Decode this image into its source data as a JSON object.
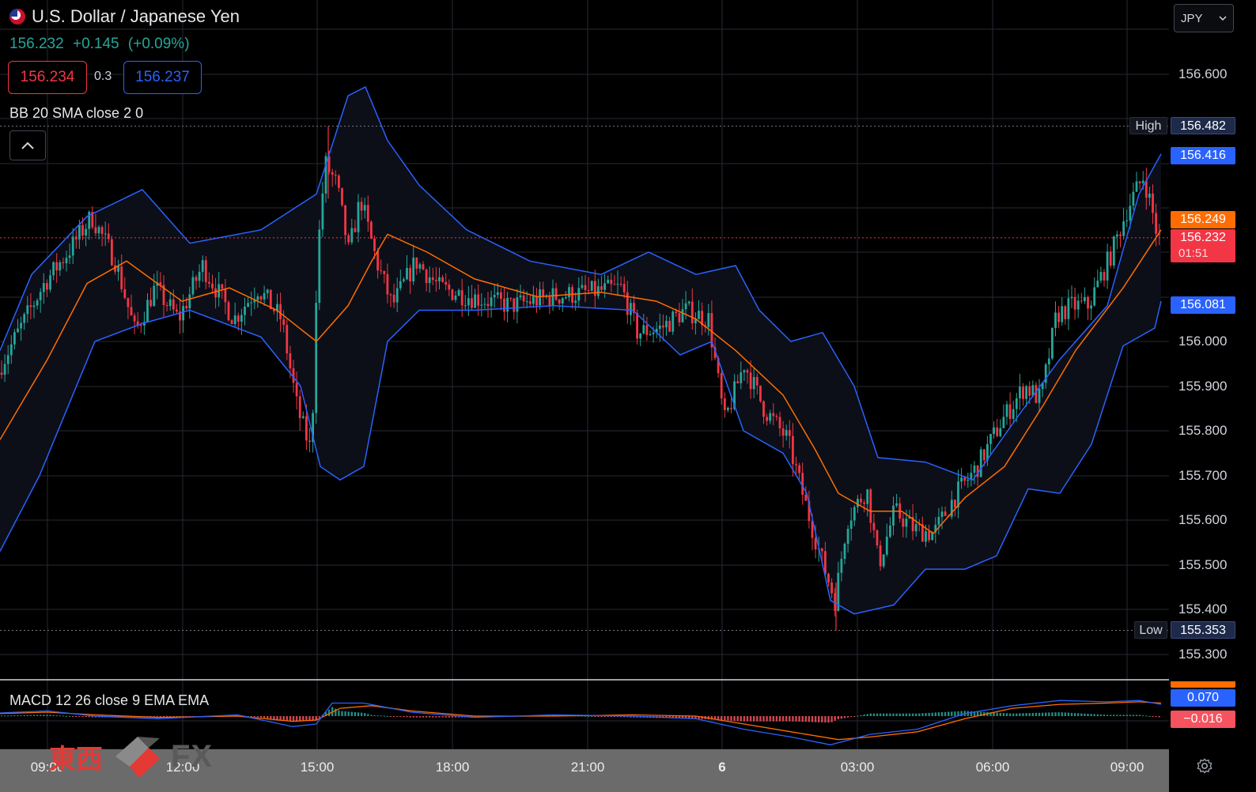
{
  "header": {
    "title": "U.S. Dollar / Japanese Yen",
    "price": "156.232",
    "change": "+0.145",
    "change_pct": "(+0.09%)",
    "sell_price": "156.234",
    "spread": "0.3",
    "buy_price": "156.237",
    "indicator_bb": "BB 20 SMA close 2 0",
    "indicator_macd": "MACD 12 26 close 9 EMA EMA"
  },
  "currency_select": {
    "value": "JPY"
  },
  "price_axis": {
    "ticks": [
      "156.600",
      "156.000",
      "155.900",
      "155.800",
      "155.700",
      "155.600",
      "155.500",
      "155.400",
      "155.300"
    ],
    "badges": {
      "high_label": "High",
      "high_value": "156.482",
      "bb_upper": "156.416",
      "bb_basis": "156.249",
      "last_price": "156.232",
      "countdown": "01:51",
      "bb_lower": "156.081",
      "low_label": "Low",
      "low_value": "155.353",
      "macd_line": "0.070",
      "macd_hist": "−0.016"
    }
  },
  "time_axis": {
    "labels": [
      "09:00",
      "12:00",
      "15:00",
      "18:00",
      "21:00",
      "6",
      "03:00",
      "06:00",
      "09:00"
    ]
  },
  "watermark": {
    "cjk": "東西",
    "fx": "FX"
  },
  "colors": {
    "up": "#26a69a",
    "down": "#f23645",
    "bb_band": "#2962ff",
    "basis": "#ff6d00",
    "macd_signal": "#ff6d00"
  },
  "chart_data": {
    "type": "candlestick",
    "title": "U.S. Dollar / Japanese Yen",
    "ylim": [
      155.25,
      156.72
    ],
    "x_labels": [
      "09:00",
      "12:00",
      "15:00",
      "18:00",
      "21:00",
      "6",
      "03:00",
      "06:00",
      "09:00"
    ],
    "high": 156.482,
    "low": 155.353,
    "last": 156.232,
    "bb_upper_anchors": [
      [
        0,
        155.98
      ],
      [
        40,
        156.15
      ],
      [
        110,
        156.28
      ],
      [
        180,
        156.34
      ],
      [
        240,
        156.22
      ],
      [
        330,
        156.25
      ],
      [
        400,
        156.33
      ],
      [
        440,
        156.55
      ],
      [
        462,
        156.57
      ],
      [
        490,
        156.45
      ],
      [
        530,
        156.35
      ],
      [
        590,
        156.25
      ],
      [
        670,
        156.18
      ],
      [
        760,
        156.15
      ],
      [
        820,
        156.2
      ],
      [
        880,
        156.15
      ],
      [
        930,
        156.17
      ],
      [
        960,
        156.07
      ],
      [
        1000,
        156.0
      ],
      [
        1040,
        156.02
      ],
      [
        1080,
        155.9
      ],
      [
        1110,
        155.74
      ],
      [
        1170,
        155.73
      ],
      [
        1230,
        155.69
      ],
      [
        1290,
        155.84
      ],
      [
        1340,
        155.96
      ],
      [
        1400,
        156.08
      ],
      [
        1440,
        156.33
      ],
      [
        1468,
        156.42
      ]
    ],
    "bb_lower_anchors": [
      [
        0,
        155.53
      ],
      [
        50,
        155.7
      ],
      [
        120,
        156.0
      ],
      [
        180,
        156.04
      ],
      [
        240,
        156.07
      ],
      [
        330,
        156.01
      ],
      [
        380,
        155.9
      ],
      [
        405,
        155.72
      ],
      [
        430,
        155.69
      ],
      [
        460,
        155.72
      ],
      [
        490,
        156.0
      ],
      [
        530,
        156.07
      ],
      [
        600,
        156.07
      ],
      [
        700,
        156.08
      ],
      [
        800,
        156.07
      ],
      [
        860,
        155.97
      ],
      [
        900,
        156.0
      ],
      [
        940,
        155.8
      ],
      [
        990,
        155.75
      ],
      [
        1020,
        155.66
      ],
      [
        1050,
        155.42
      ],
      [
        1080,
        155.39
      ],
      [
        1130,
        155.41
      ],
      [
        1170,
        155.49
      ],
      [
        1220,
        155.49
      ],
      [
        1260,
        155.52
      ],
      [
        1300,
        155.67
      ],
      [
        1340,
        155.66
      ],
      [
        1380,
        155.77
      ],
      [
        1420,
        155.99
      ],
      [
        1460,
        156.03
      ],
      [
        1468,
        156.09
      ]
    ],
    "basis_anchors": [
      [
        0,
        155.78
      ],
      [
        60,
        155.96
      ],
      [
        110,
        156.13
      ],
      [
        160,
        156.18
      ],
      [
        230,
        156.09
      ],
      [
        290,
        156.12
      ],
      [
        350,
        156.07
      ],
      [
        400,
        156.0
      ],
      [
        440,
        156.08
      ],
      [
        470,
        156.18
      ],
      [
        490,
        156.24
      ],
      [
        540,
        156.2
      ],
      [
        600,
        156.14
      ],
      [
        680,
        156.1
      ],
      [
        760,
        156.11
      ],
      [
        830,
        156.09
      ],
      [
        880,
        156.05
      ],
      [
        930,
        155.98
      ],
      [
        990,
        155.88
      ],
      [
        1030,
        155.76
      ],
      [
        1060,
        155.66
      ],
      [
        1100,
        155.62
      ],
      [
        1140,
        155.62
      ],
      [
        1180,
        155.57
      ],
      [
        1220,
        155.65
      ],
      [
        1270,
        155.72
      ],
      [
        1320,
        155.86
      ],
      [
        1360,
        155.98
      ],
      [
        1420,
        156.12
      ],
      [
        1468,
        156.25
      ]
    ],
    "price_path": [
      [
        0,
        155.93
      ],
      [
        30,
        156.03
      ],
      [
        60,
        156.13
      ],
      [
        90,
        156.2
      ],
      [
        120,
        156.28
      ],
      [
        150,
        156.18
      ],
      [
        175,
        156.02
      ],
      [
        200,
        156.12
      ],
      [
        230,
        156.05
      ],
      [
        260,
        156.17
      ],
      [
        300,
        156.05
      ],
      [
        330,
        156.12
      ],
      [
        360,
        156.05
      ],
      [
        380,
        155.85
      ],
      [
        398,
        155.75
      ],
      [
        405,
        156.18
      ],
      [
        415,
        156.4
      ],
      [
        430,
        156.35
      ],
      [
        445,
        156.2
      ],
      [
        460,
        156.32
      ],
      [
        480,
        156.18
      ],
      [
        500,
        156.08
      ],
      [
        530,
        156.18
      ],
      [
        560,
        156.12
      ],
      [
        600,
        156.1
      ],
      [
        650,
        156.08
      ],
      [
        700,
        156.1
      ],
      [
        750,
        156.11
      ],
      [
        790,
        156.12
      ],
      [
        810,
        156.02
      ],
      [
        840,
        156.03
      ],
      [
        870,
        156.07
      ],
      [
        900,
        156.05
      ],
      [
        920,
        155.82
      ],
      [
        945,
        155.95
      ],
      [
        970,
        155.85
      ],
      [
        1000,
        155.78
      ],
      [
        1025,
        155.62
      ],
      [
        1045,
        155.5
      ],
      [
        1060,
        155.42
      ],
      [
        1075,
        155.6
      ],
      [
        1100,
        155.67
      ],
      [
        1115,
        155.5
      ],
      [
        1135,
        155.62
      ],
      [
        1160,
        155.58
      ],
      [
        1185,
        155.57
      ],
      [
        1210,
        155.65
      ],
      [
        1240,
        155.72
      ],
      [
        1270,
        155.82
      ],
      [
        1300,
        155.9
      ],
      [
        1320,
        155.87
      ],
      [
        1340,
        156.06
      ],
      [
        1360,
        156.08
      ],
      [
        1380,
        156.08
      ],
      [
        1410,
        156.2
      ],
      [
        1430,
        156.3
      ],
      [
        1450,
        156.37
      ],
      [
        1460,
        156.3
      ],
      [
        1468,
        156.23
      ]
    ],
    "macd_signal_anchors": [
      [
        0,
        0.01
      ],
      [
        60,
        0.015
      ],
      [
        120,
        0.005
      ],
      [
        200,
        -0.005
      ],
      [
        300,
        0.0
      ],
      [
        370,
        -0.02
      ],
      [
        400,
        -0.015
      ],
      [
        430,
        0.03
      ],
      [
        470,
        0.04
      ],
      [
        520,
        0.02
      ],
      [
        600,
        0.0
      ],
      [
        700,
        0.0
      ],
      [
        800,
        0.005
      ],
      [
        880,
        0.0
      ],
      [
        940,
        -0.03
      ],
      [
        1000,
        -0.06
      ],
      [
        1060,
        -0.09
      ],
      [
        1100,
        -0.08
      ],
      [
        1160,
        -0.06
      ],
      [
        1220,
        -0.01
      ],
      [
        1280,
        0.03
      ],
      [
        1340,
        0.045
      ],
      [
        1400,
        0.05
      ],
      [
        1440,
        0.055
      ],
      [
        1468,
        0.05
      ]
    ],
    "macd_line_anchors": [
      [
        0,
        0.012
      ],
      [
        60,
        0.02
      ],
      [
        120,
        0.0
      ],
      [
        200,
        -0.01
      ],
      [
        300,
        0.005
      ],
      [
        370,
        -0.04
      ],
      [
        400,
        -0.03
      ],
      [
        420,
        0.05
      ],
      [
        460,
        0.05
      ],
      [
        520,
        0.015
      ],
      [
        600,
        -0.005
      ],
      [
        700,
        0.005
      ],
      [
        800,
        0.0
      ],
      [
        880,
        -0.01
      ],
      [
        940,
        -0.05
      ],
      [
        1000,
        -0.08
      ],
      [
        1050,
        -0.11
      ],
      [
        1100,
        -0.07
      ],
      [
        1160,
        -0.05
      ],
      [
        1220,
        0.01
      ],
      [
        1280,
        0.04
      ],
      [
        1340,
        0.06
      ],
      [
        1400,
        0.055
      ],
      [
        1440,
        0.06
      ],
      [
        1468,
        0.045
      ]
    ]
  }
}
